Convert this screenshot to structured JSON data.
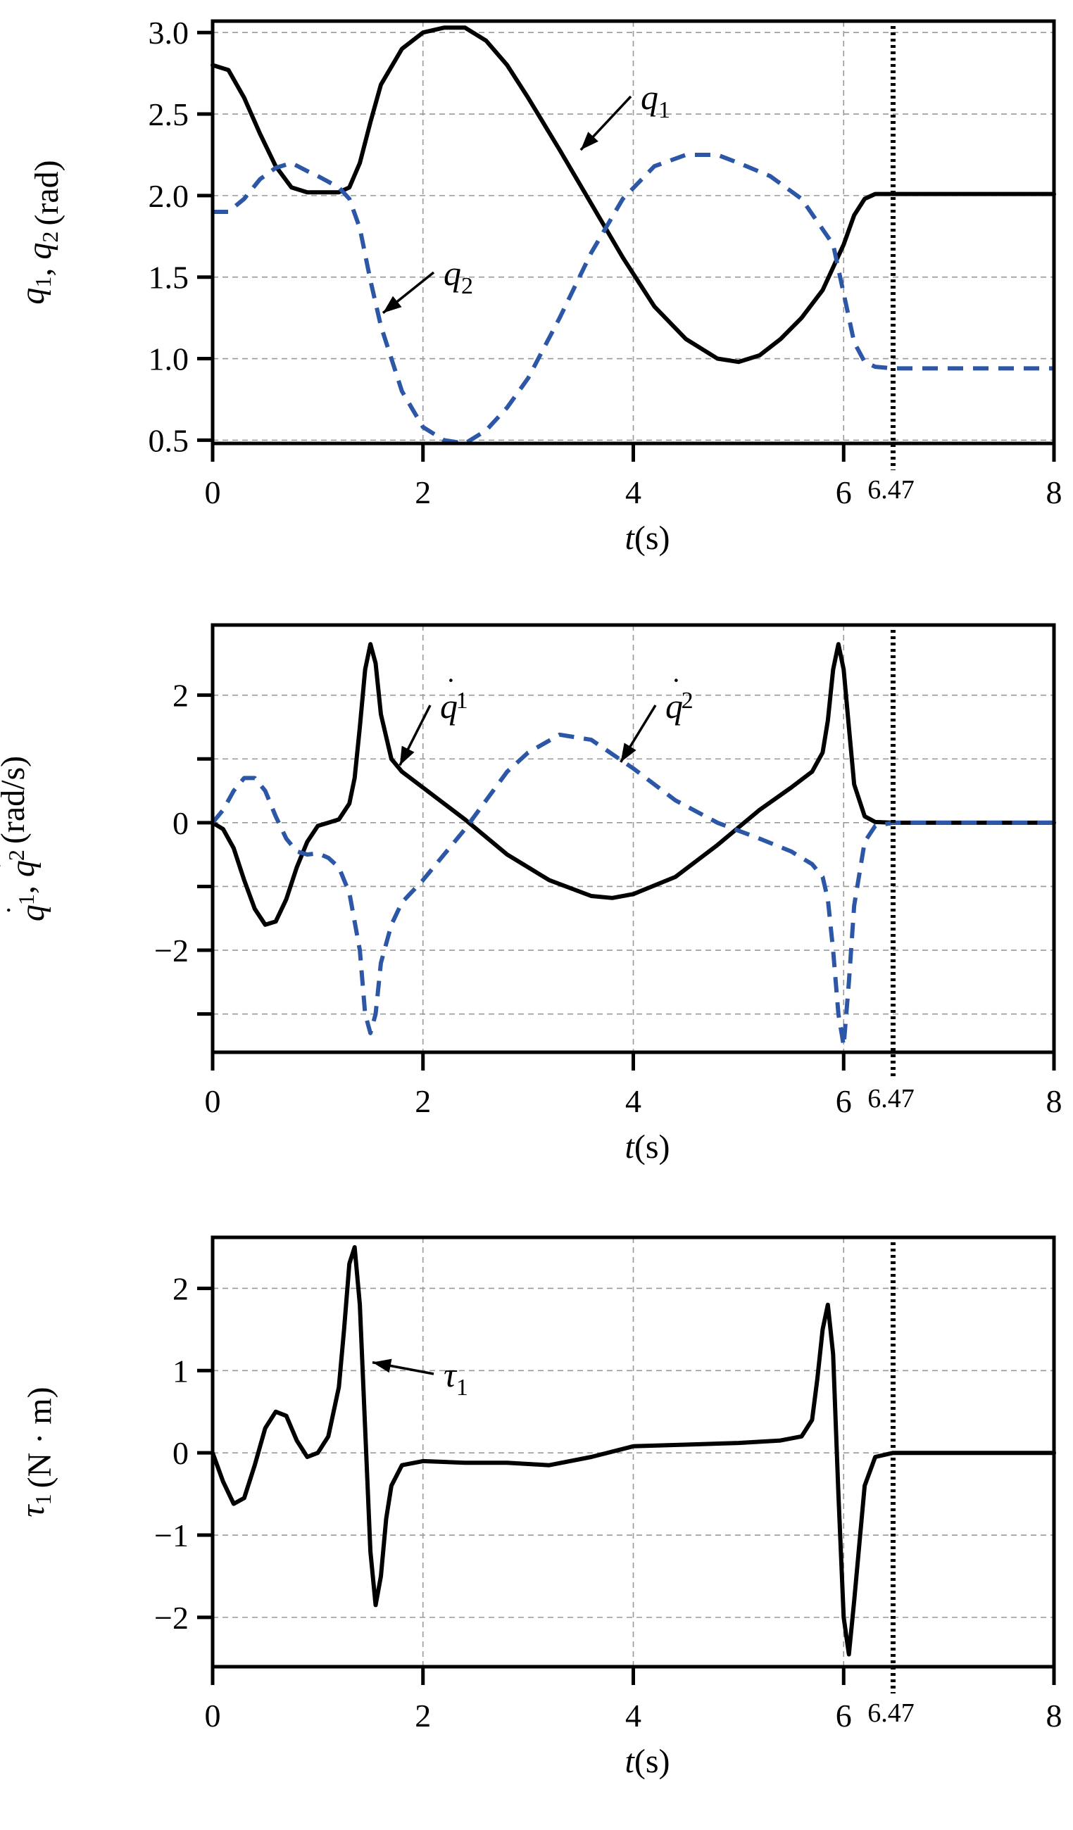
{
  "colors": {
    "black": "#000000",
    "blue": "#2c57a7"
  },
  "chart_data": [
    {
      "type": "line",
      "ylabel_html": "q₁, q₂ (rad)",
      "ylabel_parts": {
        "var1": "q",
        "sub1": "1",
        "var2": "q",
        "sub2": "2",
        "unit": "(rad)"
      },
      "xlabel_parts": {
        "var": "t",
        "unit": "(s)"
      },
      "xlim": [
        0,
        8
      ],
      "ylim": [
        0.48,
        3.07
      ],
      "xticks": [
        0,
        2,
        4,
        6,
        8
      ],
      "xtick_labels": [
        "0",
        "2",
        "4",
        "6",
        "8"
      ],
      "yticks": [
        0.5,
        1.0,
        1.5,
        2.0,
        2.5,
        3.0
      ],
      "ytick_labels": [
        "0.5",
        "1.0",
        "1.5",
        "2.0",
        "2.5",
        "3.0"
      ],
      "marker_x": 6.47,
      "marker_label": "6.47",
      "series": [
        {
          "name": "q1",
          "style": "solid",
          "color": "#000000",
          "x": [
            0,
            0.15,
            0.3,
            0.45,
            0.6,
            0.75,
            0.9,
            1.0,
            1.1,
            1.2,
            1.3,
            1.4,
            1.5,
            1.6,
            1.8,
            2.0,
            2.2,
            2.4,
            2.6,
            2.8,
            3.0,
            3.3,
            3.6,
            3.9,
            4.2,
            4.5,
            4.8,
            5.0,
            5.2,
            5.4,
            5.6,
            5.8,
            6.0,
            6.1,
            6.2,
            6.3,
            6.47,
            7.0,
            8.0
          ],
          "y": [
            2.8,
            2.77,
            2.6,
            2.38,
            2.18,
            2.05,
            2.02,
            2.02,
            2.02,
            2.02,
            2.05,
            2.2,
            2.45,
            2.68,
            2.9,
            3.0,
            3.03,
            3.03,
            2.95,
            2.8,
            2.6,
            2.28,
            1.95,
            1.62,
            1.32,
            1.12,
            1.0,
            0.98,
            1.02,
            1.12,
            1.25,
            1.42,
            1.7,
            1.88,
            1.98,
            2.01,
            2.01,
            2.01,
            2.01
          ]
        },
        {
          "name": "q2",
          "style": "dashed",
          "color": "#2c57a7",
          "x": [
            0,
            0.15,
            0.3,
            0.45,
            0.6,
            0.75,
            0.9,
            1.0,
            1.2,
            1.3,
            1.4,
            1.5,
            1.6,
            1.7,
            1.8,
            2.0,
            2.2,
            2.4,
            2.6,
            2.8,
            3.0,
            3.3,
            3.6,
            3.9,
            4.2,
            4.5,
            4.8,
            5.0,
            5.3,
            5.6,
            5.9,
            6.0,
            6.1,
            6.2,
            6.3,
            6.47,
            7.0,
            8.0
          ],
          "y": [
            1.9,
            1.9,
            1.98,
            2.1,
            2.17,
            2.2,
            2.15,
            2.12,
            2.05,
            1.98,
            1.8,
            1.48,
            1.2,
            1.0,
            0.8,
            0.58,
            0.5,
            0.48,
            0.56,
            0.7,
            0.88,
            1.25,
            1.65,
            1.98,
            2.18,
            2.25,
            2.25,
            2.2,
            2.12,
            1.98,
            1.7,
            1.4,
            1.1,
            0.98,
            0.95,
            0.94,
            0.94,
            0.94
          ]
        }
      ],
      "annotations": [
        {
          "label": "q",
          "sub": "1",
          "target": [
            3.5,
            2.28
          ]
        },
        {
          "label": "q",
          "sub": "2",
          "target": [
            1.62,
            1.28
          ]
        }
      ]
    },
    {
      "type": "line",
      "ylabel_parts": {
        "var1": "q",
        "sub1": "1",
        "var2": "q",
        "sub2": "2",
        "unit": "(rad/s)",
        "dot": "˙"
      },
      "xlabel_parts": {
        "var": "t",
        "unit": "(s)"
      },
      "xlim": [
        0,
        8
      ],
      "ylim": [
        -3.6,
        3.1
      ],
      "xticks": [
        0,
        2,
        4,
        6,
        8
      ],
      "xtick_labels": [
        "0",
        "2",
        "4",
        "6",
        "8"
      ],
      "yticks": [
        -3,
        -2,
        -1,
        0,
        1,
        2
      ],
      "ytick_labels": [
        "",
        "−2",
        "",
        "0",
        "",
        "2"
      ],
      "marker_x": 6.47,
      "marker_label": "6.47",
      "series": [
        {
          "name": "qdot1",
          "style": "solid",
          "color": "#000000",
          "x": [
            0,
            0.1,
            0.2,
            0.3,
            0.4,
            0.5,
            0.6,
            0.7,
            0.8,
            0.9,
            1.0,
            1.1,
            1.2,
            1.3,
            1.35,
            1.4,
            1.45,
            1.5,
            1.55,
            1.6,
            1.7,
            1.8,
            2.0,
            2.4,
            2.8,
            3.2,
            3.6,
            3.8,
            4.0,
            4.4,
            4.8,
            5.2,
            5.5,
            5.7,
            5.8,
            5.85,
            5.9,
            5.95,
            6.0,
            6.05,
            6.1,
            6.2,
            6.3,
            6.47,
            7.0,
            8.0
          ],
          "y": [
            0,
            -0.1,
            -0.4,
            -0.9,
            -1.35,
            -1.6,
            -1.55,
            -1.2,
            -0.7,
            -0.3,
            -0.05,
            0,
            0.05,
            0.3,
            0.7,
            1.5,
            2.4,
            2.8,
            2.5,
            1.7,
            1.0,
            0.8,
            0.55,
            0.05,
            -0.5,
            -0.9,
            -1.15,
            -1.18,
            -1.12,
            -0.85,
            -0.35,
            0.2,
            0.55,
            0.8,
            1.1,
            1.6,
            2.4,
            2.8,
            2.4,
            1.5,
            0.6,
            0.1,
            0.01,
            0,
            0,
            0
          ]
        },
        {
          "name": "qdot2",
          "style": "dashed",
          "color": "#2c57a7",
          "x": [
            0,
            0.1,
            0.2,
            0.3,
            0.4,
            0.5,
            0.6,
            0.7,
            0.8,
            0.9,
            1.0,
            1.1,
            1.2,
            1.3,
            1.4,
            1.45,
            1.5,
            1.55,
            1.6,
            1.7,
            1.8,
            2.0,
            2.4,
            2.8,
            3.0,
            3.3,
            3.6,
            4.0,
            4.4,
            4.8,
            5.2,
            5.5,
            5.7,
            5.8,
            5.85,
            5.9,
            5.95,
            6.0,
            6.05,
            6.1,
            6.2,
            6.3,
            6.47,
            7.0,
            8.0
          ],
          "y": [
            0,
            0.2,
            0.5,
            0.7,
            0.7,
            0.5,
            0.1,
            -0.25,
            -0.45,
            -0.5,
            -0.48,
            -0.55,
            -0.7,
            -1.1,
            -2.0,
            -3.0,
            -3.3,
            -3.0,
            -2.2,
            -1.6,
            -1.25,
            -0.9,
            -0.1,
            0.8,
            1.1,
            1.38,
            1.3,
            0.85,
            0.35,
            0.0,
            -0.25,
            -0.45,
            -0.65,
            -0.85,
            -1.2,
            -2.0,
            -3.0,
            -3.5,
            -2.5,
            -1.3,
            -0.3,
            -0.05,
            0,
            0,
            0
          ]
        }
      ],
      "annotations": [
        {
          "label": "q",
          "sub": "1",
          "dot": true,
          "target": [
            1.78,
            0.9
          ]
        },
        {
          "label": "q",
          "sub": "2",
          "dot": true,
          "target": [
            3.88,
            0.95
          ]
        }
      ]
    },
    {
      "type": "line",
      "ylabel_parts": {
        "var1": "τ",
        "sub1": "1",
        "unit": "(N · m)"
      },
      "xlabel_parts": {
        "var": "t",
        "unit": "(s)"
      },
      "xlim": [
        0,
        8
      ],
      "ylim": [
        -2.6,
        2.62
      ],
      "xticks": [
        0,
        2,
        4,
        6,
        8
      ],
      "xtick_labels": [
        "0",
        "2",
        "4",
        "6",
        "8"
      ],
      "yticks": [
        -2,
        -1,
        0,
        1,
        2
      ],
      "ytick_labels": [
        "−2",
        "−1",
        "0",
        "1",
        "2"
      ],
      "marker_x": 6.47,
      "marker_label": "6.47",
      "series": [
        {
          "name": "tau1",
          "style": "solid",
          "color": "#000000",
          "x": [
            0,
            0.1,
            0.2,
            0.3,
            0.4,
            0.5,
            0.6,
            0.7,
            0.8,
            0.9,
            1.0,
            1.1,
            1.2,
            1.25,
            1.3,
            1.35,
            1.4,
            1.45,
            1.5,
            1.55,
            1.6,
            1.65,
            1.7,
            1.8,
            2.0,
            2.4,
            2.8,
            3.2,
            3.6,
            4.0,
            4.5,
            5.0,
            5.4,
            5.6,
            5.7,
            5.75,
            5.8,
            5.85,
            5.9,
            5.95,
            6.0,
            6.05,
            6.1,
            6.2,
            6.3,
            6.47,
            7.0,
            8.0
          ],
          "y": [
            0,
            -0.35,
            -0.62,
            -0.55,
            -0.15,
            0.3,
            0.5,
            0.45,
            0.15,
            -0.05,
            0,
            0.2,
            0.8,
            1.5,
            2.3,
            2.5,
            1.8,
            0.3,
            -1.2,
            -1.85,
            -1.5,
            -0.8,
            -0.4,
            -0.15,
            -0.1,
            -0.12,
            -0.12,
            -0.15,
            -0.05,
            0.08,
            0.1,
            0.12,
            0.15,
            0.2,
            0.4,
            0.9,
            1.5,
            1.8,
            1.2,
            -0.5,
            -2.0,
            -2.45,
            -1.8,
            -0.4,
            -0.05,
            0,
            0,
            0
          ]
        }
      ],
      "annotations": [
        {
          "label": "τ",
          "sub": "1",
          "target": [
            1.52,
            1.1
          ]
        }
      ]
    }
  ]
}
